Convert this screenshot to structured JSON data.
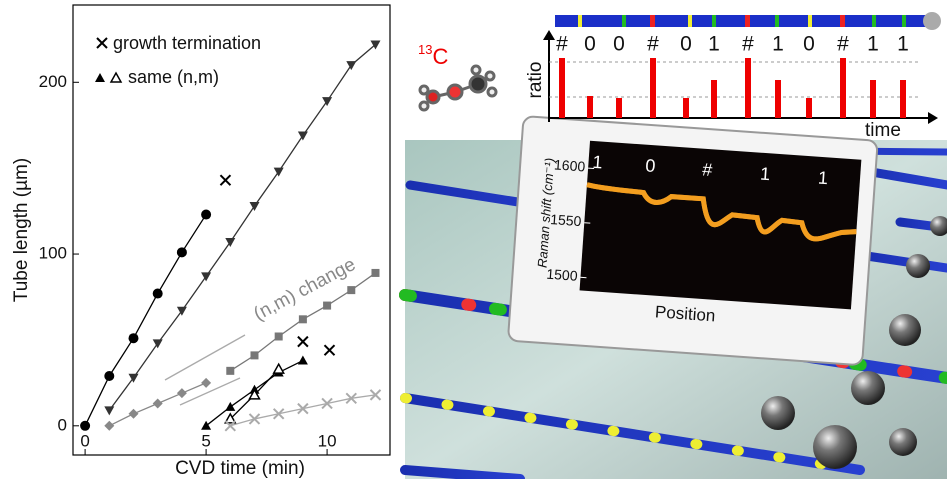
{
  "chart_data": {
    "type": "line",
    "xlabel": "CVD time (min)",
    "ylabel": "Tube length (µm)",
    "xlim": [
      -0.5,
      12.6
    ],
    "ylim": [
      -17,
      245
    ],
    "xticks": [
      0,
      5,
      10
    ],
    "yticks": [
      0,
      100,
      200
    ],
    "legend": [
      {
        "label": "growth termination"
      },
      {
        "label": "same (n,m)"
      }
    ],
    "annotations": [
      "(n,m) change"
    ],
    "series": [
      {
        "x": [
          0,
          1,
          2,
          3,
          4,
          5
        ],
        "values": [
          0,
          29,
          51,
          77,
          101,
          123
        ],
        "marker": "circle",
        "color": "#000000"
      },
      {
        "x": [
          1,
          2,
          3,
          4,
          5,
          6,
          7,
          8,
          9,
          10,
          11,
          12
        ],
        "values": [
          9,
          28,
          48,
          67,
          87,
          107,
          128,
          148,
          169,
          189,
          210,
          222
        ],
        "marker": "tri-down",
        "color": "#333333"
      },
      {
        "x": [
          1,
          2,
          3,
          4,
          5
        ],
        "values": [
          0,
          7,
          13,
          19,
          25
        ],
        "marker": "diamond",
        "color": "#888888"
      },
      {
        "x": [
          6,
          7,
          8,
          9,
          10,
          11,
          12
        ],
        "values": [
          32,
          41,
          52,
          62,
          70,
          79,
          89
        ],
        "marker": "square",
        "color": "#777777"
      },
      {
        "x": [
          5,
          6,
          7,
          8,
          9
        ],
        "values": [
          0,
          11,
          21,
          31,
          38
        ],
        "marker": "tri-up",
        "color": "#000000"
      },
      {
        "x": [
          6,
          7,
          8
        ],
        "values": [
          4,
          18,
          33
        ],
        "marker": "tri-up-open",
        "color": "#000000"
      },
      {
        "x": [
          6,
          7,
          8,
          9,
          10,
          11,
          12
        ],
        "values": [
          0,
          4,
          7,
          10,
          13,
          16,
          18
        ],
        "marker": "x",
        "color": "#aaaaaa"
      },
      {
        "x": [
          5.8,
          9,
          10.1
        ],
        "values": [
          143,
          49,
          44
        ],
        "marker": "x",
        "color": "#000000",
        "line": false
      }
    ]
  },
  "illustration": {
    "isotope_mass": "13",
    "isotope_element": "C",
    "ratio_label": "ratio",
    "time_label": "time",
    "codes": [
      "#",
      "0",
      "0",
      "#",
      "0",
      "1",
      "#",
      "1",
      "0",
      "#",
      "1",
      "1"
    ],
    "bar_heights": [
      60,
      22,
      20,
      60,
      20,
      38,
      60,
      38,
      20,
      60,
      38,
      38
    ],
    "inset": {
      "ylabel": "Raman shift (cm⁻¹)",
      "xlabel": "Position",
      "ylim": [
        1488,
        1625
      ],
      "yticks": [
        1500,
        1550,
        1600
      ],
      "codes": [
        "1",
        "0",
        "#",
        "1",
        "1"
      ]
    }
  }
}
